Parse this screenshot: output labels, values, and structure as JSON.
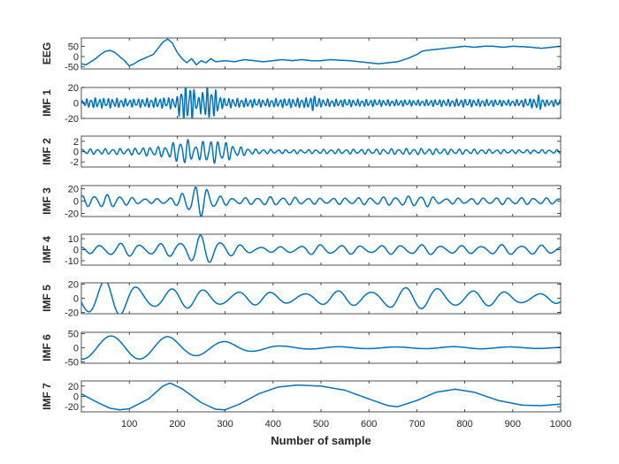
{
  "chart_data": {
    "type": "line",
    "xlabel": "Number of sample",
    "xlim": [
      0,
      1000
    ],
    "xticks": [
      100,
      200,
      300,
      400,
      500,
      600,
      700,
      800,
      900,
      1000
    ],
    "colors": {
      "line": "#0072BD",
      "axis": "#262626",
      "background": "#ffffff"
    },
    "grid": false,
    "series": [
      {
        "name": "EEG",
        "ylim": [
          -60,
          90
        ],
        "yticks": [
          50,
          0,
          -50
        ],
        "points": [
          [
            0,
            -35
          ],
          [
            10,
            -40
          ],
          [
            20,
            -25
          ],
          [
            30,
            -10
          ],
          [
            40,
            10
          ],
          [
            50,
            25
          ],
          [
            60,
            30
          ],
          [
            70,
            20
          ],
          [
            80,
            0
          ],
          [
            90,
            -20
          ],
          [
            100,
            -45
          ],
          [
            110,
            -35
          ],
          [
            120,
            -20
          ],
          [
            130,
            -10
          ],
          [
            140,
            0
          ],
          [
            150,
            10
          ],
          [
            160,
            40
          ],
          [
            170,
            70
          ],
          [
            180,
            85
          ],
          [
            190,
            65
          ],
          [
            200,
            20
          ],
          [
            210,
            -10
          ],
          [
            220,
            -30
          ],
          [
            230,
            -10
          ],
          [
            240,
            -40
          ],
          [
            250,
            -20
          ],
          [
            260,
            -30
          ],
          [
            270,
            -10
          ],
          [
            280,
            -25
          ],
          [
            300,
            -20
          ],
          [
            320,
            -25
          ],
          [
            340,
            -15
          ],
          [
            360,
            -20
          ],
          [
            380,
            -25
          ],
          [
            400,
            -20
          ],
          [
            420,
            -15
          ],
          [
            440,
            -20
          ],
          [
            460,
            -15
          ],
          [
            480,
            -20
          ],
          [
            500,
            -20
          ],
          [
            520,
            -15
          ],
          [
            540,
            -18
          ],
          [
            560,
            -20
          ],
          [
            580,
            -25
          ],
          [
            600,
            -30
          ],
          [
            620,
            -35
          ],
          [
            640,
            -30
          ],
          [
            660,
            -25
          ],
          [
            680,
            -10
          ],
          [
            700,
            10
          ],
          [
            710,
            25
          ],
          [
            720,
            30
          ],
          [
            740,
            35
          ],
          [
            760,
            40
          ],
          [
            780,
            45
          ],
          [
            800,
            50
          ],
          [
            820,
            45
          ],
          [
            840,
            50
          ],
          [
            860,
            50
          ],
          [
            880,
            45
          ],
          [
            900,
            50
          ],
          [
            920,
            48
          ],
          [
            940,
            45
          ],
          [
            960,
            40
          ],
          [
            980,
            45
          ],
          [
            1000,
            50
          ]
        ]
      },
      {
        "name": "IMF 1",
        "ylim": [
          -20,
          20
        ],
        "yticks": [
          20,
          0,
          -20
        ],
        "model": {
          "kind": "sum-of-sines",
          "components": [
            {
              "amp": 1,
              "freq": 0.7,
              "phase": 0
            },
            {
              "amp": 0.35,
              "freq": 1.1,
              "phase": 1.3
            }
          ],
          "envelope": [
            [
              0,
              3
            ],
            [
              20,
              5
            ],
            [
              60,
              5
            ],
            [
              100,
              4
            ],
            [
              150,
              5
            ],
            [
              200,
              6
            ],
            [
              205,
              17
            ],
            [
              230,
              19
            ],
            [
              245,
              6
            ],
            [
              255,
              17
            ],
            [
              275,
              16
            ],
            [
              295,
              5
            ],
            [
              380,
              4
            ],
            [
              470,
              5
            ],
            [
              485,
              8
            ],
            [
              500,
              4
            ],
            [
              700,
              3
            ],
            [
              800,
              4
            ],
            [
              900,
              3
            ],
            [
              945,
              5
            ],
            [
              955,
              8
            ],
            [
              970,
              3
            ],
            [
              1000,
              4
            ]
          ]
        }
      },
      {
        "name": "IMF 2",
        "ylim": [
          -3,
          3
        ],
        "yticks": [
          2,
          0,
          -2
        ],
        "model": {
          "kind": "sum-of-sines",
          "components": [
            {
              "amp": 1,
              "freq": 0.4,
              "phase": 0.5
            },
            {
              "amp": 0.25,
              "freq": 0.62,
              "phase": 2.1
            }
          ],
          "envelope": [
            [
              0,
              0.4
            ],
            [
              100,
              0.5
            ],
            [
              180,
              0.9
            ],
            [
              200,
              1.8
            ],
            [
              220,
              2.0
            ],
            [
              240,
              1.0
            ],
            [
              260,
              2.0
            ],
            [
              300,
              1.6
            ],
            [
              320,
              0.9
            ],
            [
              360,
              0.4
            ],
            [
              420,
              0.3
            ],
            [
              600,
              0.4
            ],
            [
              700,
              0.5
            ],
            [
              800,
              0.4
            ],
            [
              900,
              0.3
            ],
            [
              1000,
              0.3
            ]
          ]
        }
      },
      {
        "name": "IMF 3",
        "ylim": [
          -25,
          25
        ],
        "yticks": [
          20,
          0,
          -20
        ],
        "model": {
          "kind": "sum-of-sines",
          "components": [
            {
              "amp": 1,
              "freq": 0.24,
              "phase": 1.2
            },
            {
              "amp": 0.2,
              "freq": 0.37,
              "phase": 0.3
            }
          ],
          "envelope": [
            [
              0,
              7
            ],
            [
              40,
              9
            ],
            [
              80,
              8
            ],
            [
              100,
              5
            ],
            [
              150,
              3
            ],
            [
              200,
              6
            ],
            [
              215,
              14
            ],
            [
              240,
              22
            ],
            [
              260,
              20
            ],
            [
              280,
              8
            ],
            [
              320,
              4
            ],
            [
              400,
              6
            ],
            [
              500,
              4
            ],
            [
              600,
              5
            ],
            [
              700,
              7
            ],
            [
              720,
              9
            ],
            [
              740,
              4
            ],
            [
              800,
              4
            ],
            [
              900,
              5
            ],
            [
              1000,
              4
            ]
          ]
        }
      },
      {
        "name": "IMF 4",
        "ylim": [
          -14,
          14
        ],
        "yticks": [
          10,
          0,
          -10
        ],
        "model": {
          "kind": "sum-of-sines",
          "components": [
            {
              "amp": 1,
              "freq": 0.15,
              "phase": 2.0
            },
            {
              "amp": 0.2,
              "freq": 0.23,
              "phase": 0.9
            }
          ],
          "envelope": [
            [
              0,
              2
            ],
            [
              60,
              5
            ],
            [
              100,
              5
            ],
            [
              150,
              4
            ],
            [
              200,
              6
            ],
            [
              240,
              11
            ],
            [
              270,
              11
            ],
            [
              300,
              6
            ],
            [
              340,
              3
            ],
            [
              400,
              2
            ],
            [
              500,
              4
            ],
            [
              600,
              3
            ],
            [
              700,
              4
            ],
            [
              800,
              3
            ],
            [
              900,
              4
            ],
            [
              1000,
              3
            ]
          ]
        }
      },
      {
        "name": "IMF 5",
        "ylim": [
          -22,
          22
        ],
        "yticks": [
          20,
          0,
          -20
        ],
        "model": {
          "kind": "sum-of-sines",
          "components": [
            {
              "amp": 1,
              "freq": 0.09,
              "phase": 3.6
            },
            {
              "amp": 0.2,
              "freq": 0.13,
              "phase": 1.0
            }
          ],
          "envelope": [
            [
              0,
              20
            ],
            [
              60,
              22
            ],
            [
              100,
              18
            ],
            [
              150,
              14
            ],
            [
              200,
              12
            ],
            [
              300,
              10
            ],
            [
              400,
              7
            ],
            [
              500,
              8
            ],
            [
              600,
              10
            ],
            [
              650,
              14
            ],
            [
              700,
              12
            ],
            [
              750,
              15
            ],
            [
              800,
              10
            ],
            [
              900,
              8
            ],
            [
              1000,
              6
            ]
          ]
        }
      },
      {
        "name": "IMF 6",
        "ylim": [
          -55,
          55
        ],
        "yticks": [
          50,
          0,
          -50
        ],
        "model": {
          "kind": "sum-of-sines",
          "components": [
            {
              "amp": 1,
              "freq": 0.0528,
              "phase": -1.7
            }
          ],
          "envelope": [
            [
              0,
              40
            ],
            [
              60,
              42
            ],
            [
              120,
              40
            ],
            [
              180,
              40
            ],
            [
              220,
              30
            ],
            [
              300,
              22
            ],
            [
              360,
              12
            ],
            [
              420,
              6
            ],
            [
              500,
              4
            ],
            [
              600,
              3
            ],
            [
              700,
              3
            ],
            [
              800,
              4
            ],
            [
              900,
              3
            ],
            [
              1000,
              2
            ]
          ]
        }
      },
      {
        "name": "IMF 7",
        "ylim": [
          -30,
          30
        ],
        "yticks": [
          20,
          0,
          -20
        ],
        "points": [
          [
            0,
            5
          ],
          [
            30,
            -10
          ],
          [
            60,
            -23
          ],
          [
            80,
            -26
          ],
          [
            100,
            -24
          ],
          [
            140,
            -5
          ],
          [
            170,
            20
          ],
          [
            185,
            26
          ],
          [
            210,
            15
          ],
          [
            250,
            -12
          ],
          [
            280,
            -25
          ],
          [
            300,
            -26
          ],
          [
            330,
            -15
          ],
          [
            370,
            5
          ],
          [
            410,
            18
          ],
          [
            450,
            22
          ],
          [
            500,
            20
          ],
          [
            550,
            12
          ],
          [
            600,
            -5
          ],
          [
            640,
            -18
          ],
          [
            660,
            -20
          ],
          [
            700,
            -8
          ],
          [
            740,
            8
          ],
          [
            780,
            14
          ],
          [
            820,
            8
          ],
          [
            870,
            -8
          ],
          [
            920,
            -17
          ],
          [
            960,
            -18
          ],
          [
            1000,
            -15
          ]
        ]
      }
    ]
  }
}
